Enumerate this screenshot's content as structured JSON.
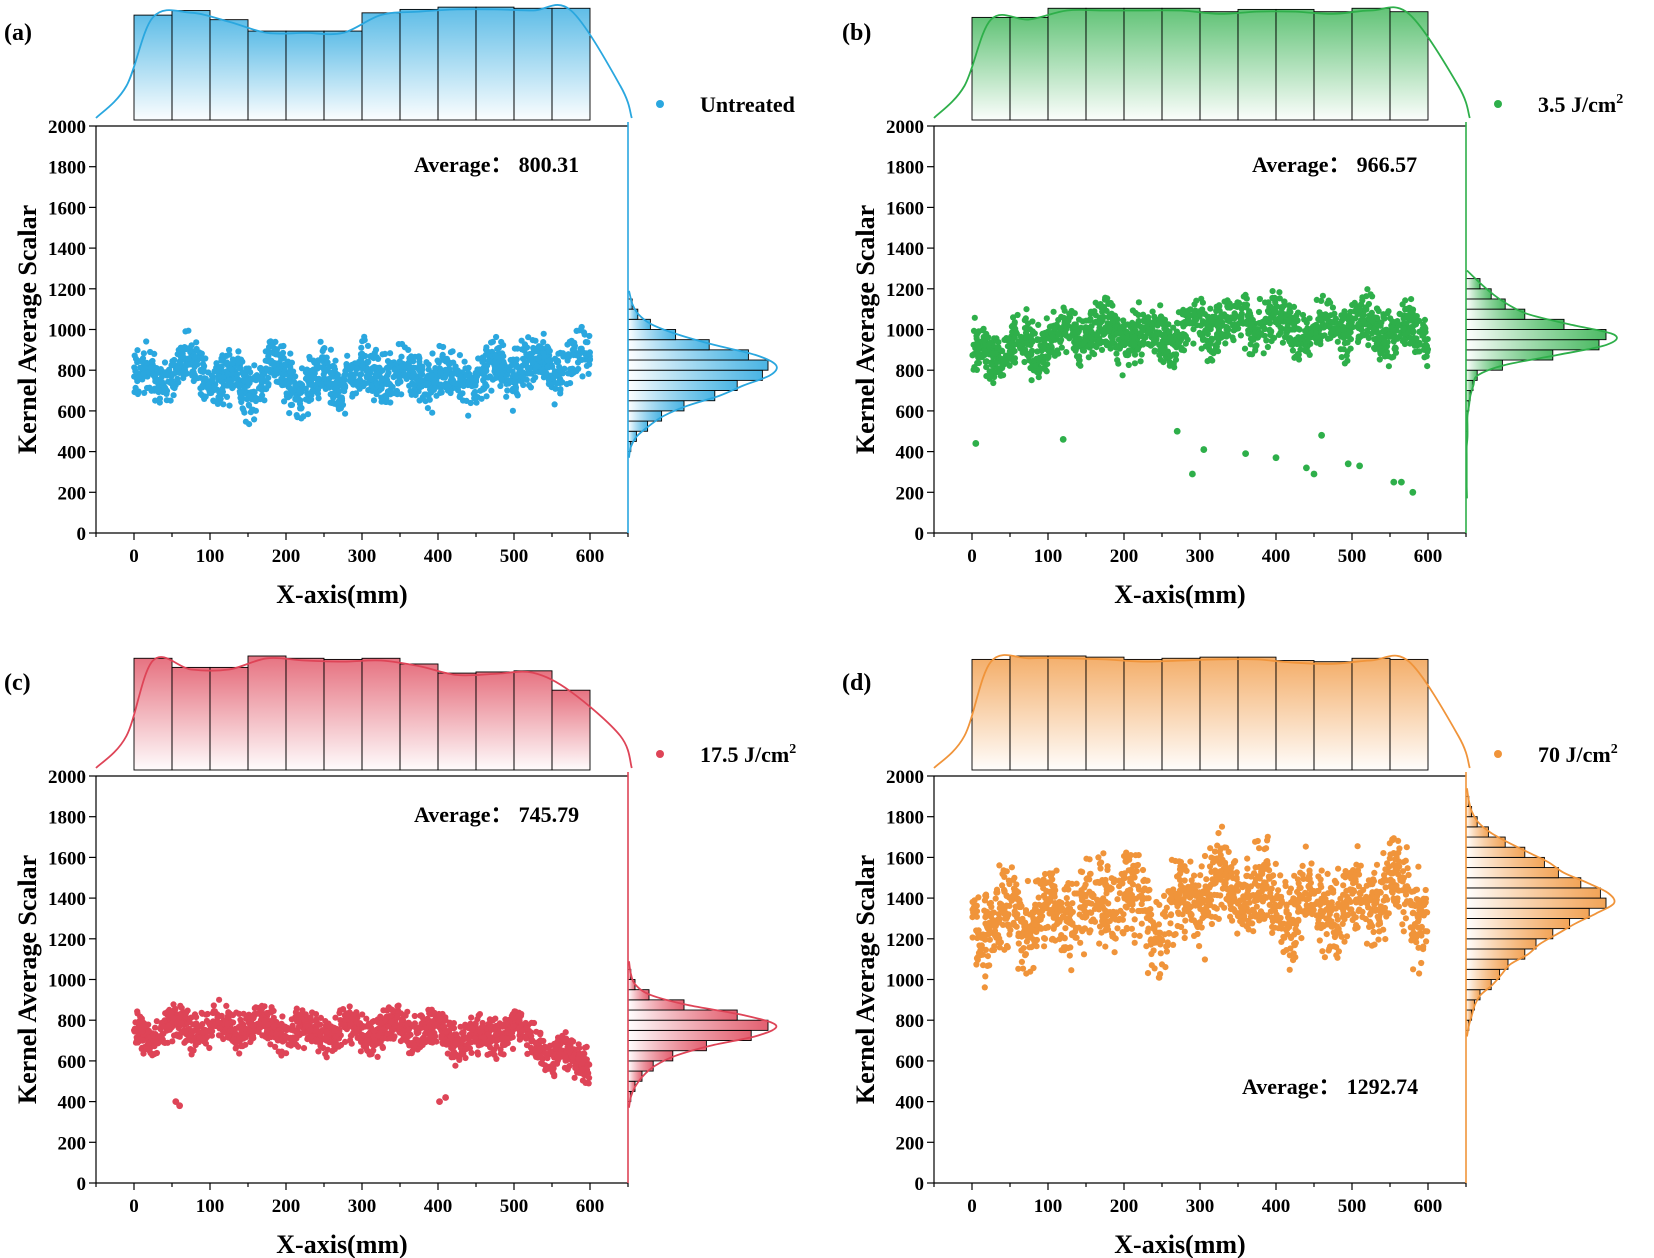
{
  "chart_data": [
    {
      "panel": "(a)",
      "type": "scatter",
      "legend": "Untreated",
      "color": "#2aa7df",
      "average_label": "Average：",
      "average_value": "800.31",
      "average_position": "top",
      "xlabel": "X-axis(mm)",
      "ylabel": "Kernel Average Scalar",
      "xlim": [
        -50,
        650
      ],
      "ylim": [
        0,
        2000
      ],
      "xticks": [
        0,
        100,
        200,
        300,
        400,
        500,
        600
      ],
      "yticks": [
        0,
        200,
        400,
        600,
        800,
        1000,
        1200,
        1400,
        1600,
        1800,
        2000
      ],
      "grid": false,
      "trend": [
        [
          0,
          760
        ],
        [
          50,
          780
        ],
        [
          70,
          830
        ],
        [
          100,
          770
        ],
        [
          150,
          720
        ],
        [
          180,
          820
        ],
        [
          220,
          720
        ],
        [
          280,
          770
        ],
        [
          320,
          790
        ],
        [
          380,
          770
        ],
        [
          420,
          760
        ],
        [
          480,
          800
        ],
        [
          550,
          830
        ],
        [
          600,
          860
        ]
      ],
      "spread": 130,
      "y_clamp": [
        460,
        1120
      ],
      "top_histogram": {
        "bin_edges": [
          0,
          50,
          100,
          150,
          200,
          250,
          300,
          350,
          400,
          450,
          500,
          550,
          600
        ],
        "counts": [
          0.92,
          0.96,
          0.88,
          0.78,
          0.78,
          0.78,
          0.94,
          0.97,
          0.99,
          0.99,
          0.98,
          0.98
        ]
      },
      "right_histogram": {
        "bin_edges": [
          400,
          450,
          500,
          550,
          600,
          650,
          700,
          750,
          800,
          850,
          900,
          950,
          1000,
          1050,
          1100,
          1150
        ],
        "counts": [
          0.02,
          0.06,
          0.14,
          0.24,
          0.4,
          0.62,
          0.78,
          0.96,
          1.0,
          0.86,
          0.58,
          0.34,
          0.16,
          0.07,
          0.03
        ]
      }
    },
    {
      "panel": "(b)",
      "type": "scatter",
      "legend": "3.5 J/cm",
      "legend_sup": "2",
      "color": "#2eaf4a",
      "average_label": "Average：",
      "average_value": "966.57",
      "average_position": "top",
      "xlabel": "X-axis(mm)",
      "ylabel": "Kernel Average Scalar",
      "xlim": [
        -50,
        650
      ],
      "ylim": [
        0,
        2000
      ],
      "xticks": [
        0,
        100,
        200,
        300,
        400,
        500,
        600
      ],
      "yticks": [
        0,
        200,
        400,
        600,
        800,
        1000,
        1200,
        1400,
        1600,
        1800,
        2000
      ],
      "grid": false,
      "trend": [
        [
          0,
          880
        ],
        [
          50,
          900
        ],
        [
          100,
          940
        ],
        [
          150,
          990
        ],
        [
          200,
          970
        ],
        [
          250,
          960
        ],
        [
          300,
          1020
        ],
        [
          350,
          1040
        ],
        [
          400,
          1040
        ],
        [
          450,
          1000
        ],
        [
          500,
          1030
        ],
        [
          550,
          990
        ],
        [
          600,
          960
        ]
      ],
      "spread": 130,
      "y_clamp": [
        560,
        1230
      ],
      "outliers": [
        [
          5,
          440
        ],
        [
          120,
          460
        ],
        [
          270,
          500
        ],
        [
          290,
          290
        ],
        [
          305,
          410
        ],
        [
          360,
          390
        ],
        [
          400,
          370
        ],
        [
          440,
          320
        ],
        [
          450,
          290
        ],
        [
          460,
          480
        ],
        [
          495,
          340
        ],
        [
          510,
          330
        ],
        [
          555,
          250
        ],
        [
          565,
          250
        ],
        [
          580,
          200
        ]
      ],
      "top_histogram": {
        "bin_edges": [
          0,
          50,
          100,
          150,
          200,
          250,
          300,
          350,
          400,
          450,
          500,
          550,
          600
        ],
        "counts": [
          0.9,
          0.9,
          0.98,
          0.98,
          0.98,
          0.98,
          0.95,
          0.97,
          0.97,
          0.95,
          0.98,
          0.95
        ]
      },
      "right_histogram": {
        "bin_edges": [
          200,
          250,
          300,
          350,
          400,
          450,
          500,
          550,
          600,
          650,
          700,
          750,
          800,
          850,
          900,
          950,
          1000,
          1050,
          1100,
          1150,
          1200,
          1250
        ],
        "counts": [
          0.005,
          0.005,
          0.005,
          0.005,
          0.005,
          0.01,
          0.01,
          0.01,
          0.02,
          0.03,
          0.05,
          0.08,
          0.26,
          0.62,
          0.95,
          1.0,
          0.7,
          0.42,
          0.28,
          0.18,
          0.1
        ]
      }
    },
    {
      "panel": "(c)",
      "type": "scatter",
      "legend": "17.5 J/cm",
      "legend_sup": "2",
      "color": "#de4457",
      "average_label": "Average：",
      "average_value": "745.79",
      "average_position": "top",
      "xlabel": "X-axis(mm)",
      "ylabel": "Kernel Average Scalar",
      "xlim": [
        -50,
        650
      ],
      "ylim": [
        0,
        2000
      ],
      "xticks": [
        0,
        100,
        200,
        300,
        400,
        500,
        600
      ],
      "yticks": [
        0,
        200,
        400,
        600,
        800,
        1000,
        1200,
        1400,
        1600,
        1800,
        2000
      ],
      "grid": false,
      "trend": [
        [
          0,
          720
        ],
        [
          50,
          760
        ],
        [
          100,
          770
        ],
        [
          150,
          760
        ],
        [
          200,
          760
        ],
        [
          250,
          750
        ],
        [
          300,
          740
        ],
        [
          350,
          760
        ],
        [
          400,
          740
        ],
        [
          450,
          700
        ],
        [
          500,
          760
        ],
        [
          550,
          640
        ],
        [
          600,
          600
        ]
      ],
      "spread": 95,
      "y_clamp": [
        380,
        1040
      ],
      "outliers": [
        [
          55,
          400
        ],
        [
          60,
          380
        ],
        [
          402,
          400
        ],
        [
          410,
          420
        ]
      ],
      "top_histogram": {
        "bin_edges": [
          0,
          50,
          100,
          150,
          200,
          250,
          300,
          350,
          400,
          450,
          500,
          550,
          600
        ],
        "counts": [
          0.98,
          0.9,
          0.9,
          1.0,
          0.98,
          0.97,
          0.98,
          0.93,
          0.85,
          0.86,
          0.87,
          0.7
        ]
      },
      "right_histogram": {
        "bin_edges": [
          400,
          450,
          500,
          550,
          600,
          650,
          700,
          750,
          800,
          850,
          900,
          950,
          1000,
          1050
        ],
        "counts": [
          0.02,
          0.05,
          0.1,
          0.18,
          0.32,
          0.56,
          0.88,
          1.0,
          0.78,
          0.4,
          0.15,
          0.05,
          0.02
        ]
      }
    },
    {
      "panel": "(d)",
      "type": "scatter",
      "legend": "70 J/cm",
      "legend_sup": "2",
      "color": "#f0943a",
      "average_label": "Average：",
      "average_value": "1292.74",
      "average_position": "bottom",
      "xlabel": "X-axis(mm)",
      "ylabel": "Kernel Average Scalar",
      "xlim": [
        -50,
        650
      ],
      "ylim": [
        0,
        2000
      ],
      "xticks": [
        0,
        100,
        200,
        300,
        400,
        500,
        600
      ],
      "yticks": [
        0,
        200,
        400,
        600,
        800,
        1000,
        1200,
        1400,
        1600,
        1800,
        2000
      ],
      "grid": false,
      "trend": [
        [
          0,
          1280
        ],
        [
          50,
          1300
        ],
        [
          100,
          1310
        ],
        [
          150,
          1330
        ],
        [
          200,
          1420
        ],
        [
          250,
          1250
        ],
        [
          300,
          1440
        ],
        [
          350,
          1450
        ],
        [
          380,
          1420
        ],
        [
          400,
          1350
        ],
        [
          450,
          1350
        ],
        [
          500,
          1360
        ],
        [
          550,
          1450
        ],
        [
          600,
          1320
        ]
      ],
      "spread": 210,
      "y_clamp": [
        740,
        1890
      ],
      "top_histogram": {
        "bin_edges": [
          0,
          50,
          100,
          150,
          200,
          250,
          300,
          350,
          400,
          450,
          500,
          550,
          600
        ],
        "counts": [
          0.97,
          1.0,
          1.0,
          0.99,
          0.97,
          0.98,
          0.99,
          0.99,
          0.96,
          0.95,
          0.98,
          0.97
        ]
      },
      "right_histogram": {
        "bin_edges": [
          750,
          800,
          850,
          900,
          950,
          1000,
          1050,
          1100,
          1150,
          1200,
          1250,
          1300,
          1350,
          1400,
          1450,
          1500,
          1550,
          1600,
          1650,
          1700,
          1750,
          1800,
          1850,
          1900
        ],
        "counts": [
          0.02,
          0.04,
          0.06,
          0.1,
          0.18,
          0.24,
          0.3,
          0.42,
          0.5,
          0.62,
          0.74,
          0.88,
          1.0,
          0.96,
          0.82,
          0.66,
          0.56,
          0.42,
          0.28,
          0.16,
          0.08,
          0.04,
          0.02
        ]
      }
    }
  ]
}
